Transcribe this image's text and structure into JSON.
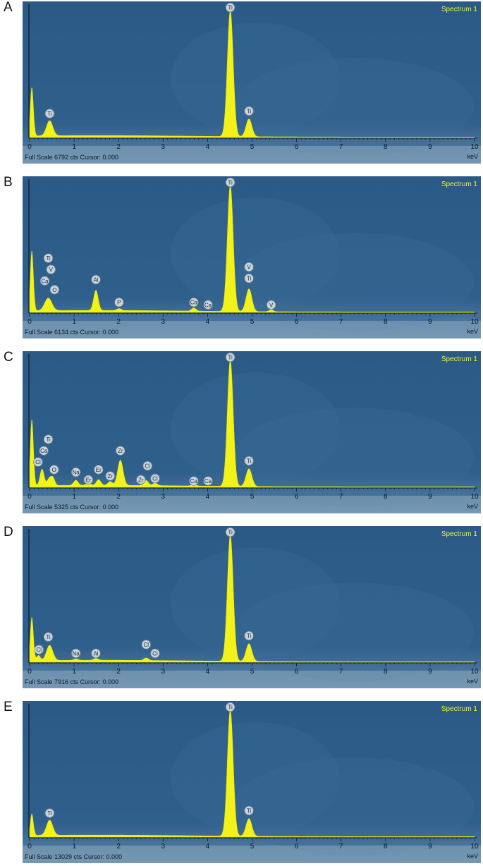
{
  "chart_data": [
    {
      "type": "line",
      "panel_label": "A",
      "legend": "Spectrum 1",
      "status_text": "Full Scale 6792 cts Cursor: 0.000",
      "xlabel": "keV",
      "xlim": [
        0,
        10
      ],
      "x_ticks": [
        "0",
        "1",
        "2",
        "3",
        "4",
        "5",
        "6",
        "7",
        "8",
        "9",
        "10"
      ],
      "peaks": [
        {
          "x": 0.05,
          "height": 0.39,
          "width": 0.035
        },
        {
          "x": 0.45,
          "height": 0.12,
          "width": 0.07
        },
        {
          "x": 4.51,
          "height": 1.0,
          "width": 0.065
        },
        {
          "x": 4.93,
          "height": 0.14,
          "width": 0.065
        }
      ],
      "labels": [
        {
          "text": "Ti",
          "x": 0.45,
          "y": 0.19
        },
        {
          "text": "Ti",
          "x": 4.51,
          "y": 1.03
        },
        {
          "text": "Ti",
          "x": 4.93,
          "y": 0.21
        }
      ]
    },
    {
      "type": "line",
      "panel_label": "B",
      "legend": "Spectrum 1",
      "status_text": "Full Scale 6134 cts Cursor: 0.000",
      "xlabel": "keV",
      "xlim": [
        0,
        10
      ],
      "x_ticks": [
        "0",
        "1",
        "2",
        "3",
        "4",
        "5",
        "6",
        "7",
        "8",
        "9",
        "10"
      ],
      "peaks": [
        {
          "x": 0.05,
          "height": 0.48,
          "width": 0.035
        },
        {
          "x": 0.42,
          "height": 0.1,
          "width": 0.08
        },
        {
          "x": 1.49,
          "height": 0.16,
          "width": 0.05
        },
        {
          "x": 2.01,
          "height": 0.015,
          "width": 0.05
        },
        {
          "x": 3.69,
          "height": 0.025,
          "width": 0.05
        },
        {
          "x": 4.51,
          "height": 1.0,
          "width": 0.065
        },
        {
          "x": 4.93,
          "height": 0.18,
          "width": 0.065
        },
        {
          "x": 5.43,
          "height": 0.015,
          "width": 0.05
        }
      ],
      "labels": [
        {
          "text": "Ti",
          "x": 0.42,
          "y": 0.43
        },
        {
          "text": "V",
          "x": 0.48,
          "y": 0.34
        },
        {
          "text": "Ca",
          "x": 0.34,
          "y": 0.25
        },
        {
          "text": "O",
          "x": 0.56,
          "y": 0.18
        },
        {
          "text": "Al",
          "x": 1.49,
          "y": 0.26
        },
        {
          "text": "P",
          "x": 2.01,
          "y": 0.08
        },
        {
          "text": "Ca",
          "x": 3.69,
          "y": 0.08
        },
        {
          "text": "Ca",
          "x": 4.01,
          "y": 0.06
        },
        {
          "text": "Ti",
          "x": 4.51,
          "y": 1.03
        },
        {
          "text": "V",
          "x": 4.93,
          "y": 0.36
        },
        {
          "text": "Ti",
          "x": 4.93,
          "y": 0.27
        },
        {
          "text": "V",
          "x": 5.43,
          "y": 0.06
        }
      ]
    },
    {
      "type": "line",
      "panel_label": "C",
      "legend": "Spectrum 1",
      "status_text": "Full Scale 5325 cts Cursor: 0.000",
      "xlabel": "keV",
      "xlim": [
        0,
        10
      ],
      "x_ticks": [
        "0",
        "1",
        "2",
        "3",
        "4",
        "5",
        "6",
        "7",
        "8",
        "9",
        "10"
      ],
      "peaks": [
        {
          "x": 0.05,
          "height": 0.53,
          "width": 0.035
        },
        {
          "x": 0.28,
          "height": 0.13,
          "width": 0.045
        },
        {
          "x": 0.45,
          "height": 0.06,
          "width": 0.05
        },
        {
          "x": 0.53,
          "height": 0.05,
          "width": 0.04
        },
        {
          "x": 1.04,
          "height": 0.04,
          "width": 0.05
        },
        {
          "x": 1.32,
          "height": 0.02,
          "width": 0.05
        },
        {
          "x": 1.55,
          "height": 0.045,
          "width": 0.05
        },
        {
          "x": 1.81,
          "height": 0.03,
          "width": 0.05
        },
        {
          "x": 2.04,
          "height": 0.2,
          "width": 0.06
        },
        {
          "x": 2.62,
          "height": 0.04,
          "width": 0.05
        },
        {
          "x": 2.82,
          "height": 0.02,
          "width": 0.05
        },
        {
          "x": 3.69,
          "height": 0.015,
          "width": 0.05
        },
        {
          "x": 4.51,
          "height": 1.0,
          "width": 0.065
        },
        {
          "x": 4.93,
          "height": 0.14,
          "width": 0.065
        }
      ],
      "labels": [
        {
          "text": "Ti",
          "x": 0.42,
          "y": 0.38
        },
        {
          "text": "Ca",
          "x": 0.32,
          "y": 0.29
        },
        {
          "text": "Cl",
          "x": 0.19,
          "y": 0.2
        },
        {
          "text": "O",
          "x": 0.55,
          "y": 0.14
        },
        {
          "text": "Na",
          "x": 1.04,
          "y": 0.12
        },
        {
          "text": "Er",
          "x": 1.32,
          "y": 0.06
        },
        {
          "text": "Er",
          "x": 1.55,
          "y": 0.14
        },
        {
          "text": "Zr",
          "x": 1.81,
          "y": 0.09
        },
        {
          "text": "Zr",
          "x": 2.04,
          "y": 0.29
        },
        {
          "text": "Zr",
          "x": 2.5,
          "y": 0.06
        },
        {
          "text": "Cl",
          "x": 2.65,
          "y": 0.17
        },
        {
          "text": "Cl",
          "x": 2.82,
          "y": 0.07
        },
        {
          "text": "Ca",
          "x": 3.69,
          "y": 0.05
        },
        {
          "text": "Ca",
          "x": 4.01,
          "y": 0.05
        },
        {
          "text": "Ti",
          "x": 4.51,
          "y": 1.03
        },
        {
          "text": "Ti",
          "x": 4.93,
          "y": 0.21
        }
      ]
    },
    {
      "type": "line",
      "panel_label": "D",
      "legend": "Spectrum 1",
      "status_text": "Full Scale 7916 cts Cursor: 0.000",
      "xlabel": "keV",
      "xlim": [
        0,
        10
      ],
      "x_ticks": [
        "0",
        "1",
        "2",
        "3",
        "4",
        "5",
        "6",
        "7",
        "8",
        "9",
        "10"
      ],
      "peaks": [
        {
          "x": 0.05,
          "height": 0.35,
          "width": 0.035
        },
        {
          "x": 0.2,
          "height": 0.04,
          "width": 0.04
        },
        {
          "x": 0.45,
          "height": 0.12,
          "width": 0.07
        },
        {
          "x": 1.04,
          "height": 0.01,
          "width": 0.05
        },
        {
          "x": 1.49,
          "height": 0.015,
          "width": 0.05
        },
        {
          "x": 2.62,
          "height": 0.02,
          "width": 0.05
        },
        {
          "x": 4.51,
          "height": 1.0,
          "width": 0.065
        },
        {
          "x": 4.93,
          "height": 0.14,
          "width": 0.065
        }
      ],
      "labels": [
        {
          "text": "Ti",
          "x": 0.42,
          "y": 0.2
        },
        {
          "text": "Cl",
          "x": 0.21,
          "y": 0.1
        },
        {
          "text": "Na",
          "x": 1.04,
          "y": 0.07
        },
        {
          "text": "Al",
          "x": 1.49,
          "y": 0.07
        },
        {
          "text": "Cl",
          "x": 2.62,
          "y": 0.14
        },
        {
          "text": "Cl",
          "x": 2.82,
          "y": 0.07
        },
        {
          "text": "Ti",
          "x": 4.51,
          "y": 1.03
        },
        {
          "text": "Ti",
          "x": 4.93,
          "y": 0.21
        }
      ]
    },
    {
      "type": "line",
      "panel_label": "E",
      "legend": "Spectrum 1",
      "status_text": "Full Scale 13029 cts Cursor: 0.000",
      "xlabel": "keV",
      "xlim": [
        0,
        10
      ],
      "x_ticks": [
        "0",
        "1",
        "2",
        "3",
        "4",
        "5",
        "6",
        "7",
        "8",
        "9",
        "10"
      ],
      "peaks": [
        {
          "x": 0.05,
          "height": 0.18,
          "width": 0.035
        },
        {
          "x": 0.45,
          "height": 0.12,
          "width": 0.07
        },
        {
          "x": 4.51,
          "height": 1.0,
          "width": 0.065
        },
        {
          "x": 4.93,
          "height": 0.14,
          "width": 0.065
        }
      ],
      "labels": [
        {
          "text": "Ti",
          "x": 0.45,
          "y": 0.19
        },
        {
          "text": "Ti",
          "x": 4.51,
          "y": 1.03
        },
        {
          "text": "Ti",
          "x": 4.93,
          "y": 0.21
        }
      ]
    }
  ]
}
